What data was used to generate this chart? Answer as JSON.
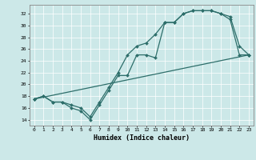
{
  "xlabel": "Humidex (Indice chaleur)",
  "bg_color": "#cce8e8",
  "line_color": "#2d6e6a",
  "xlim": [
    -0.5,
    23.5
  ],
  "ylim": [
    13.0,
    33.5
  ],
  "yticks": [
    14,
    16,
    18,
    20,
    22,
    24,
    26,
    28,
    30,
    32
  ],
  "xticks": [
    0,
    1,
    2,
    3,
    4,
    5,
    6,
    7,
    8,
    9,
    10,
    11,
    12,
    13,
    14,
    15,
    16,
    17,
    18,
    19,
    20,
    21,
    22,
    23
  ],
  "line1_x": [
    0,
    1,
    2,
    3,
    4,
    5,
    6,
    7,
    8,
    9,
    10,
    11,
    12,
    13,
    14,
    15,
    16,
    17,
    18,
    19,
    20,
    21,
    22,
    23
  ],
  "line1_y": [
    17.5,
    18.0,
    17.0,
    17.0,
    16.0,
    15.5,
    14.0,
    16.5,
    19.0,
    21.5,
    21.5,
    25.0,
    25.0,
    24.5,
    30.5,
    30.5,
    32.0,
    32.5,
    32.5,
    32.5,
    32.0,
    31.0,
    25.0,
    25.0
  ],
  "line2_x": [
    0,
    1,
    2,
    3,
    4,
    5,
    6,
    7,
    8,
    9,
    10,
    11,
    12,
    13,
    14,
    15,
    16,
    17,
    18,
    19,
    20,
    21,
    22,
    23
  ],
  "line2_y": [
    17.5,
    18.0,
    17.0,
    17.0,
    16.5,
    16.0,
    14.5,
    17.0,
    19.5,
    22.0,
    25.0,
    26.5,
    27.0,
    28.5,
    30.5,
    30.5,
    32.0,
    32.5,
    32.5,
    32.5,
    32.0,
    31.5,
    26.5,
    25.0
  ],
  "line3_x": [
    0,
    23
  ],
  "line3_y": [
    17.5,
    25.0
  ]
}
